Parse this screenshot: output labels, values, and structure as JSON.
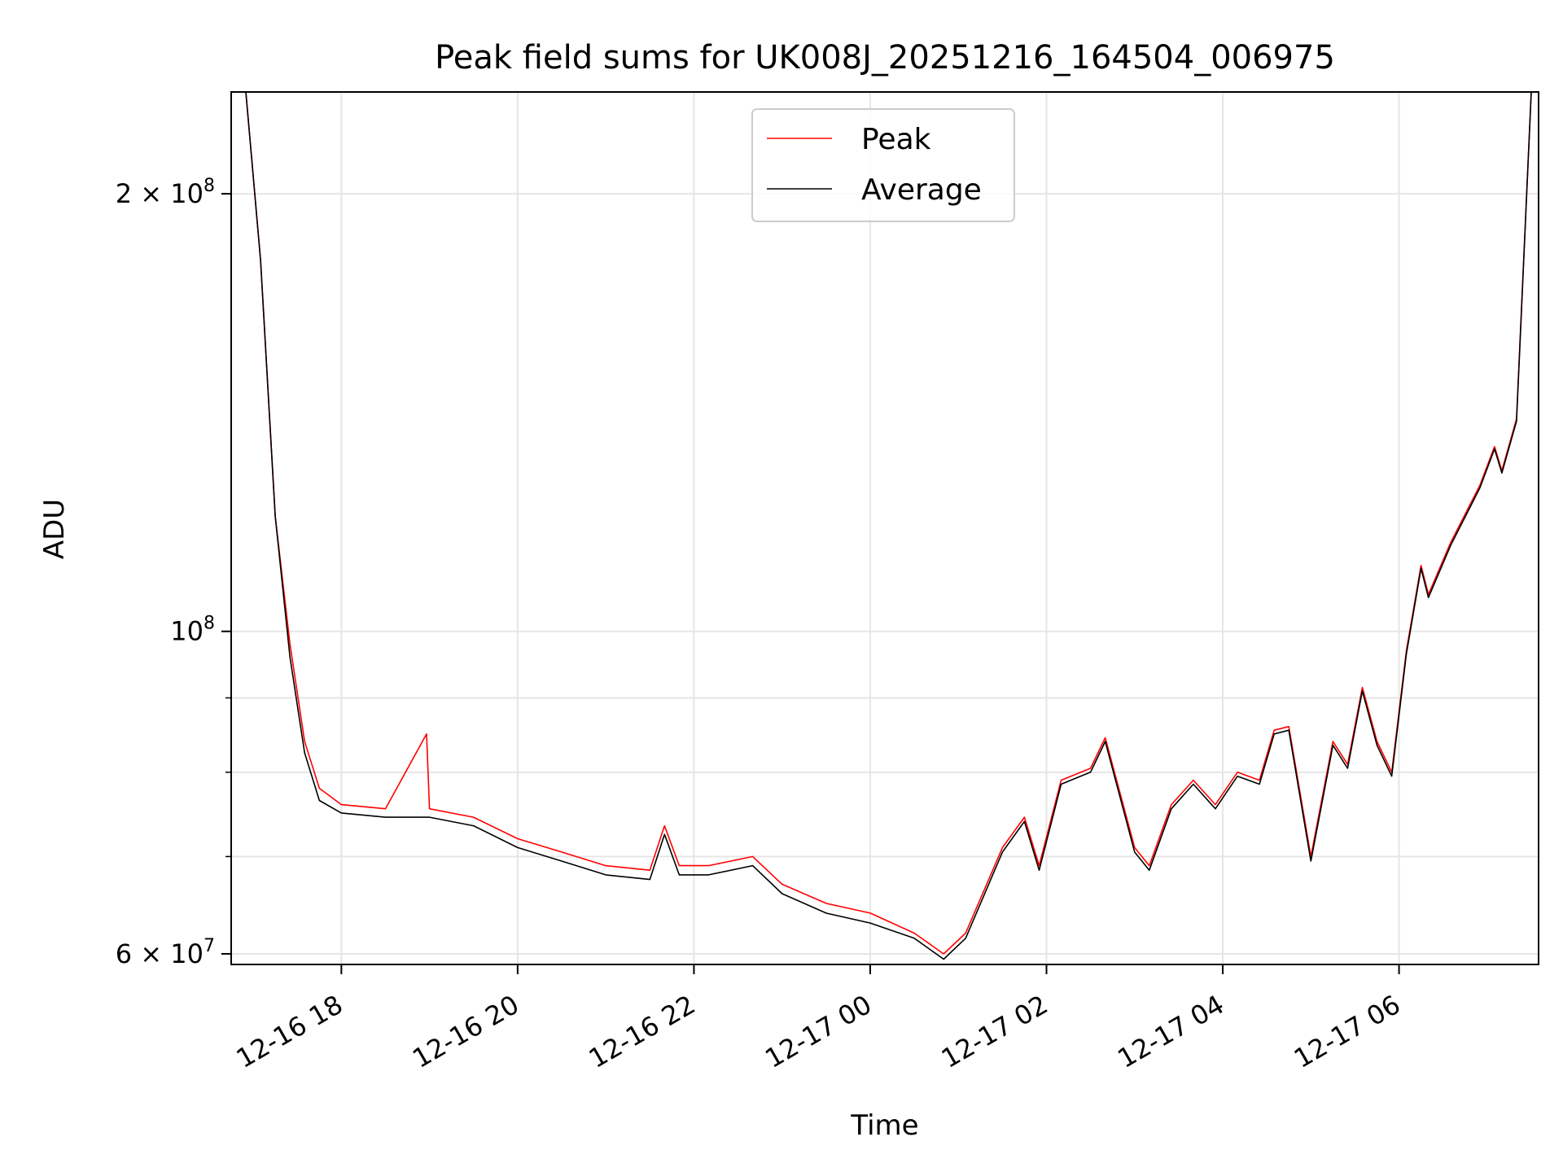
{
  "chart_data": {
    "type": "line",
    "title": "Peak field sums for UK008J_20251216_164504_006975",
    "xlabel": "Time",
    "ylabel": "ADU",
    "x_type": "datetime",
    "xlim": [
      "2025-12-16T16:45",
      "2025-12-17T07:35"
    ],
    "ylim": [
      59000000,
      235000000
    ],
    "yscale": "log",
    "grid": true,
    "legend_position": "top-center",
    "x_ticks": [
      {
        "value": "2025-12-16T18:00",
        "label": "12-16 18"
      },
      {
        "value": "2025-12-16T20:00",
        "label": "12-16 20"
      },
      {
        "value": "2025-12-16T22:00",
        "label": "12-16 22"
      },
      {
        "value": "2025-12-17T00:00",
        "label": "12-17 00"
      },
      {
        "value": "2025-12-17T02:00",
        "label": "12-17 02"
      },
      {
        "value": "2025-12-17T04:00",
        "label": "12-17 04"
      },
      {
        "value": "2025-12-17T06:00",
        "label": "12-17 06"
      }
    ],
    "y_ticks": [
      {
        "value": 60000000,
        "base": "6 × 10",
        "exp": "7"
      },
      {
        "value": 100000000,
        "base": "10",
        "exp": "8"
      },
      {
        "value": 200000000,
        "base": "2 × 10",
        "exp": "8"
      }
    ],
    "y_minor_ticks": [
      70000000,
      80000000,
      90000000
    ],
    "series": [
      {
        "name": "Peak",
        "color": "#ff0000",
        "points": [
          [
            "2025-12-16T16:55",
            235000000
          ],
          [
            "2025-12-16T17:05",
            180000000
          ],
          [
            "2025-12-16T17:15",
            120000000
          ],
          [
            "2025-12-16T17:25",
            98000000
          ],
          [
            "2025-12-16T17:35",
            84000000
          ],
          [
            "2025-12-16T17:45",
            78000000
          ],
          [
            "2025-12-16T18:00",
            76000000
          ],
          [
            "2025-12-16T18:30",
            75500000
          ],
          [
            "2025-12-16T18:58",
            85000000
          ],
          [
            "2025-12-16T19:00",
            75500000
          ],
          [
            "2025-12-16T19:30",
            74500000
          ],
          [
            "2025-12-16T20:00",
            72000000
          ],
          [
            "2025-12-16T20:30",
            70500000
          ],
          [
            "2025-12-16T21:00",
            69000000
          ],
          [
            "2025-12-16T21:30",
            68500000
          ],
          [
            "2025-12-16T21:40",
            73500000
          ],
          [
            "2025-12-16T21:50",
            69000000
          ],
          [
            "2025-12-16T22:10",
            69000000
          ],
          [
            "2025-12-16T22:40",
            70000000
          ],
          [
            "2025-12-16T23:00",
            67000000
          ],
          [
            "2025-12-16T23:30",
            65000000
          ],
          [
            "2025-12-17T00:00",
            64000000
          ],
          [
            "2025-12-17T00:30",
            62000000
          ],
          [
            "2025-12-17T00:50",
            60000000
          ],
          [
            "2025-12-17T01:05",
            62000000
          ],
          [
            "2025-12-17T01:30",
            71000000
          ],
          [
            "2025-12-17T01:45",
            74500000
          ],
          [
            "2025-12-17T01:55",
            69000000
          ],
          [
            "2025-12-17T02:10",
            79000000
          ],
          [
            "2025-12-17T02:30",
            80500000
          ],
          [
            "2025-12-17T02:40",
            84500000
          ],
          [
            "2025-12-17T03:00",
            71000000
          ],
          [
            "2025-12-17T03:10",
            69000000
          ],
          [
            "2025-12-17T03:25",
            76000000
          ],
          [
            "2025-12-17T03:40",
            79000000
          ],
          [
            "2025-12-17T03:55",
            76000000
          ],
          [
            "2025-12-17T04:10",
            80000000
          ],
          [
            "2025-12-17T04:25",
            79000000
          ],
          [
            "2025-12-17T04:35",
            85500000
          ],
          [
            "2025-12-17T04:45",
            86000000
          ],
          [
            "2025-12-17T05:00",
            70000000
          ],
          [
            "2025-12-17T05:15",
            84000000
          ],
          [
            "2025-12-17T05:25",
            81000000
          ],
          [
            "2025-12-17T05:35",
            91500000
          ],
          [
            "2025-12-17T05:45",
            84000000
          ],
          [
            "2025-12-17T05:55",
            80000000
          ],
          [
            "2025-12-17T06:05",
            97000000
          ],
          [
            "2025-12-17T06:15",
            111000000
          ],
          [
            "2025-12-17T06:20",
            106000000
          ],
          [
            "2025-12-17T06:35",
            115000000
          ],
          [
            "2025-12-17T06:55",
            126000000
          ],
          [
            "2025-12-17T07:05",
            134000000
          ],
          [
            "2025-12-17T07:10",
            129000000
          ],
          [
            "2025-12-17T07:20",
            140000000
          ],
          [
            "2025-12-17T07:30",
            235000000
          ]
        ]
      },
      {
        "name": "Average",
        "color": "#000000",
        "points": [
          [
            "2025-12-16T16:55",
            235000000
          ],
          [
            "2025-12-16T17:05",
            180000000
          ],
          [
            "2025-12-16T17:15",
            120000000
          ],
          [
            "2025-12-16T17:25",
            96000000
          ],
          [
            "2025-12-16T17:35",
            82500000
          ],
          [
            "2025-12-16T17:45",
            76500000
          ],
          [
            "2025-12-16T18:00",
            75000000
          ],
          [
            "2025-12-16T18:30",
            74500000
          ],
          [
            "2025-12-16T19:00",
            74500000
          ],
          [
            "2025-12-16T19:30",
            73500000
          ],
          [
            "2025-12-16T20:00",
            71000000
          ],
          [
            "2025-12-16T20:30",
            69500000
          ],
          [
            "2025-12-16T21:00",
            68000000
          ],
          [
            "2025-12-16T21:30",
            67500000
          ],
          [
            "2025-12-16T21:40",
            72500000
          ],
          [
            "2025-12-16T21:50",
            68000000
          ],
          [
            "2025-12-16T22:10",
            68000000
          ],
          [
            "2025-12-16T22:40",
            69000000
          ],
          [
            "2025-12-16T23:00",
            66000000
          ],
          [
            "2025-12-16T23:30",
            64000000
          ],
          [
            "2025-12-17T00:00",
            63000000
          ],
          [
            "2025-12-17T00:30",
            61500000
          ],
          [
            "2025-12-17T00:50",
            59500000
          ],
          [
            "2025-12-17T01:05",
            61500000
          ],
          [
            "2025-12-17T01:30",
            70500000
          ],
          [
            "2025-12-17T01:45",
            74000000
          ],
          [
            "2025-12-17T01:55",
            68500000
          ],
          [
            "2025-12-17T02:10",
            78500000
          ],
          [
            "2025-12-17T02:30",
            80000000
          ],
          [
            "2025-12-17T02:40",
            84000000
          ],
          [
            "2025-12-17T03:00",
            70500000
          ],
          [
            "2025-12-17T03:10",
            68500000
          ],
          [
            "2025-12-17T03:25",
            75500000
          ],
          [
            "2025-12-17T03:40",
            78500000
          ],
          [
            "2025-12-17T03:55",
            75500000
          ],
          [
            "2025-12-17T04:10",
            79500000
          ],
          [
            "2025-12-17T04:25",
            78500000
          ],
          [
            "2025-12-17T04:35",
            85000000
          ],
          [
            "2025-12-17T04:45",
            85500000
          ],
          [
            "2025-12-17T05:00",
            69500000
          ],
          [
            "2025-12-17T05:15",
            83500000
          ],
          [
            "2025-12-17T05:25",
            80500000
          ],
          [
            "2025-12-17T05:35",
            91000000
          ],
          [
            "2025-12-17T05:45",
            83500000
          ],
          [
            "2025-12-17T05:55",
            79500000
          ],
          [
            "2025-12-17T06:05",
            96500000
          ],
          [
            "2025-12-17T06:15",
            110500000
          ],
          [
            "2025-12-17T06:20",
            105500000
          ],
          [
            "2025-12-17T06:35",
            114500000
          ],
          [
            "2025-12-17T06:55",
            125500000
          ],
          [
            "2025-12-17T07:05",
            133500000
          ],
          [
            "2025-12-17T07:10",
            128500000
          ],
          [
            "2025-12-17T07:20",
            139500000
          ],
          [
            "2025-12-17T07:30",
            235000000
          ]
        ]
      }
    ]
  }
}
